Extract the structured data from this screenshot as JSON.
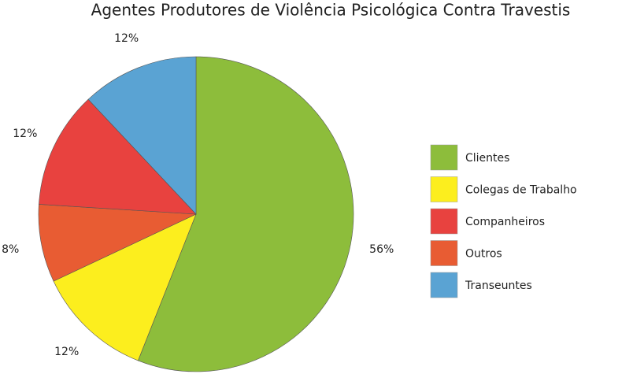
{
  "chart_data": {
    "type": "pie",
    "title": "Agentes Produtores de Violência Psicológica Contra Travestis",
    "categories": [
      "Clientes",
      "Colegas de Trabalho",
      "Companheiros",
      "Outros",
      "Transeuntes"
    ],
    "values": [
      56,
      12,
      12,
      8,
      12
    ],
    "value_labels": [
      "56%",
      "12%",
      "12%",
      "8%",
      "12%"
    ],
    "colors": [
      "#8dbd3b",
      "#fcee1e",
      "#e8423f",
      "#e85c33",
      "#5aa3d3"
    ],
    "legend": "right"
  }
}
